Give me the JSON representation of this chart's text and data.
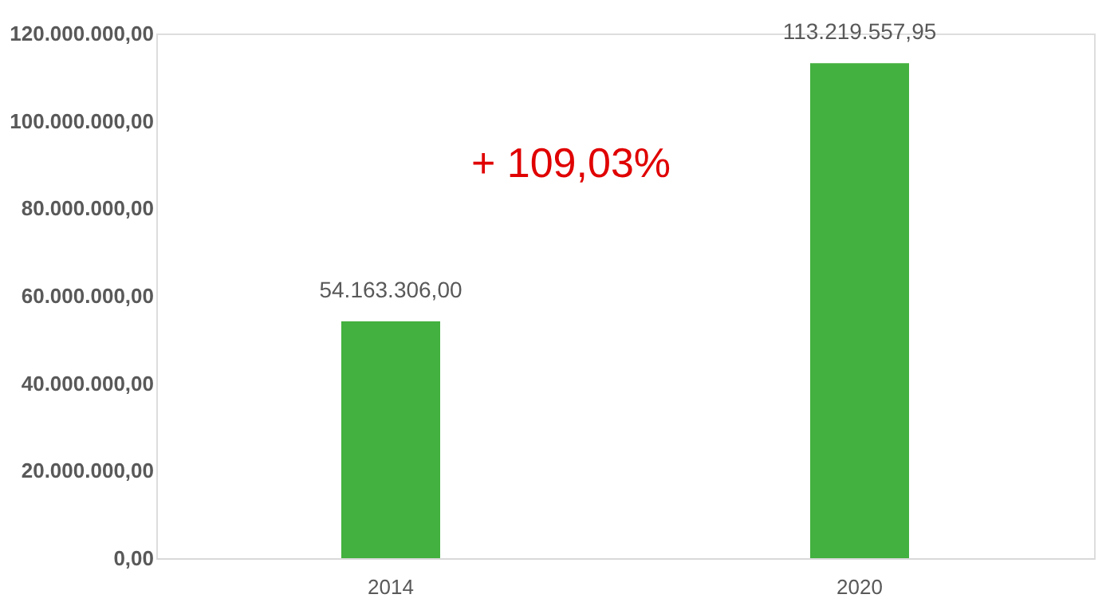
{
  "chart_data": {
    "type": "bar",
    "categories": [
      "2014",
      "2020"
    ],
    "values": [
      54163306.0,
      113219557.95
    ],
    "value_labels": [
      "54.163.306,00",
      "113.219.557,95"
    ],
    "color": "#43b13f",
    "ylim": [
      0,
      120000000
    ],
    "yticks": [
      {
        "value": 0,
        "label": "0,00"
      },
      {
        "value": 20000000,
        "label": "20.000.000,00"
      },
      {
        "value": 40000000,
        "label": "40.000.000,00"
      },
      {
        "value": 60000000,
        "label": "60.000.000,00"
      },
      {
        "value": 80000000,
        "label": "80.000.000,00"
      },
      {
        "value": 100000000,
        "label": "100.000.000,00"
      },
      {
        "value": 120000000,
        "label": "120.000.000,00"
      }
    ],
    "annotations": [
      "+ 109,03%"
    ],
    "grid": false
  }
}
